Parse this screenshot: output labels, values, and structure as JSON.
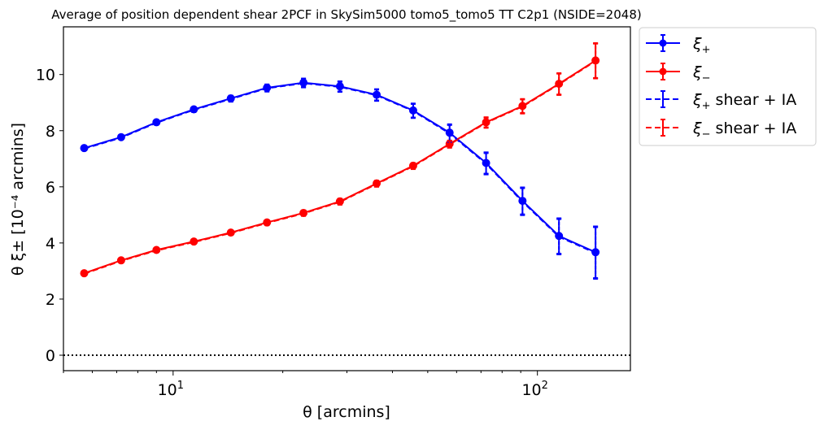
{
  "chart_data": {
    "type": "line",
    "title": "Average of position dependent shear 2PCF in SkySim5000 tomo5_tomo5 TT C2p1 (NSIDE=2048)",
    "xlabel": "θ [arcmins]",
    "ylabel": "θ ξ± [10⁻⁴ arcmins]",
    "xscale": "log",
    "xlim": [
      5.0,
      180.0
    ],
    "ylim": [
      -0.55,
      11.7
    ],
    "x_major_ticks": [
      {
        "value": 10,
        "base": "10",
        "exp": "1"
      },
      {
        "value": 100,
        "base": "10",
        "exp": "2"
      }
    ],
    "y_ticks": [
      0,
      2,
      4,
      6,
      8,
      10
    ],
    "y_tick_labels": [
      "0",
      "2",
      "4",
      "6",
      "8",
      "10"
    ],
    "zero_line": {
      "y": 0,
      "style": "dotted",
      "color": "#000000"
    },
    "grid": false,
    "legend_position": "outside-right",
    "x": [
      5.7,
      7.2,
      9.0,
      11.4,
      14.4,
      18.1,
      22.8,
      28.7,
      36.2,
      45.6,
      57.4,
      72.3,
      91.0,
      114.6,
      144.4
    ],
    "series": [
      {
        "name": "ξ+",
        "legend_main": "ξ",
        "legend_sub": "+",
        "legend_extra": "",
        "color": "#0000ff",
        "linestyle": "solid",
        "marker": "circle",
        "values": [
          7.38,
          7.77,
          8.3,
          8.76,
          9.15,
          9.53,
          9.71,
          9.58,
          9.28,
          8.72,
          7.93,
          6.85,
          5.5,
          4.25,
          3.67
        ],
        "errors": [
          0.04,
          0.05,
          0.07,
          0.08,
          0.1,
          0.12,
          0.15,
          0.18,
          0.2,
          0.25,
          0.3,
          0.38,
          0.48,
          0.63,
          0.92
        ]
      },
      {
        "name": "ξ−",
        "legend_main": "ξ",
        "legend_sub": "−",
        "legend_extra": "",
        "color": "#ff0000",
        "linestyle": "solid",
        "marker": "circle",
        "values": [
          2.92,
          3.38,
          3.75,
          4.05,
          4.37,
          4.73,
          5.07,
          5.48,
          6.12,
          6.75,
          7.53,
          8.3,
          8.88,
          9.67,
          10.5
        ],
        "errors": [
          0.03,
          0.04,
          0.05,
          0.06,
          0.07,
          0.08,
          0.09,
          0.1,
          0.1,
          0.1,
          0.12,
          0.18,
          0.25,
          0.38,
          0.62
        ]
      },
      {
        "name": "ξ+ shear + IA",
        "legend_main": "ξ",
        "legend_sub": "+",
        "legend_extra": " shear + IA",
        "color": "#0000ff",
        "linestyle": "dashed",
        "marker": "none",
        "values": [
          7.36,
          7.75,
          8.28,
          8.74,
          9.13,
          9.51,
          9.69,
          9.56,
          9.26,
          8.7,
          7.9,
          6.82,
          5.47,
          4.22,
          3.64
        ],
        "errors": [
          0.04,
          0.05,
          0.07,
          0.08,
          0.1,
          0.12,
          0.15,
          0.18,
          0.2,
          0.25,
          0.3,
          0.38,
          0.48,
          0.63,
          0.92
        ]
      },
      {
        "name": "ξ− shear + IA",
        "legend_main": "ξ",
        "legend_sub": "−",
        "legend_extra": " shear + IA",
        "color": "#ff0000",
        "linestyle": "dashed",
        "marker": "none",
        "values": [
          2.9,
          3.36,
          3.73,
          4.03,
          4.35,
          4.71,
          5.05,
          5.46,
          6.1,
          6.73,
          7.51,
          8.28,
          8.86,
          9.65,
          10.48
        ],
        "errors": [
          0.03,
          0.04,
          0.05,
          0.06,
          0.07,
          0.08,
          0.09,
          0.1,
          0.1,
          0.1,
          0.12,
          0.18,
          0.25,
          0.38,
          0.62
        ]
      }
    ]
  }
}
